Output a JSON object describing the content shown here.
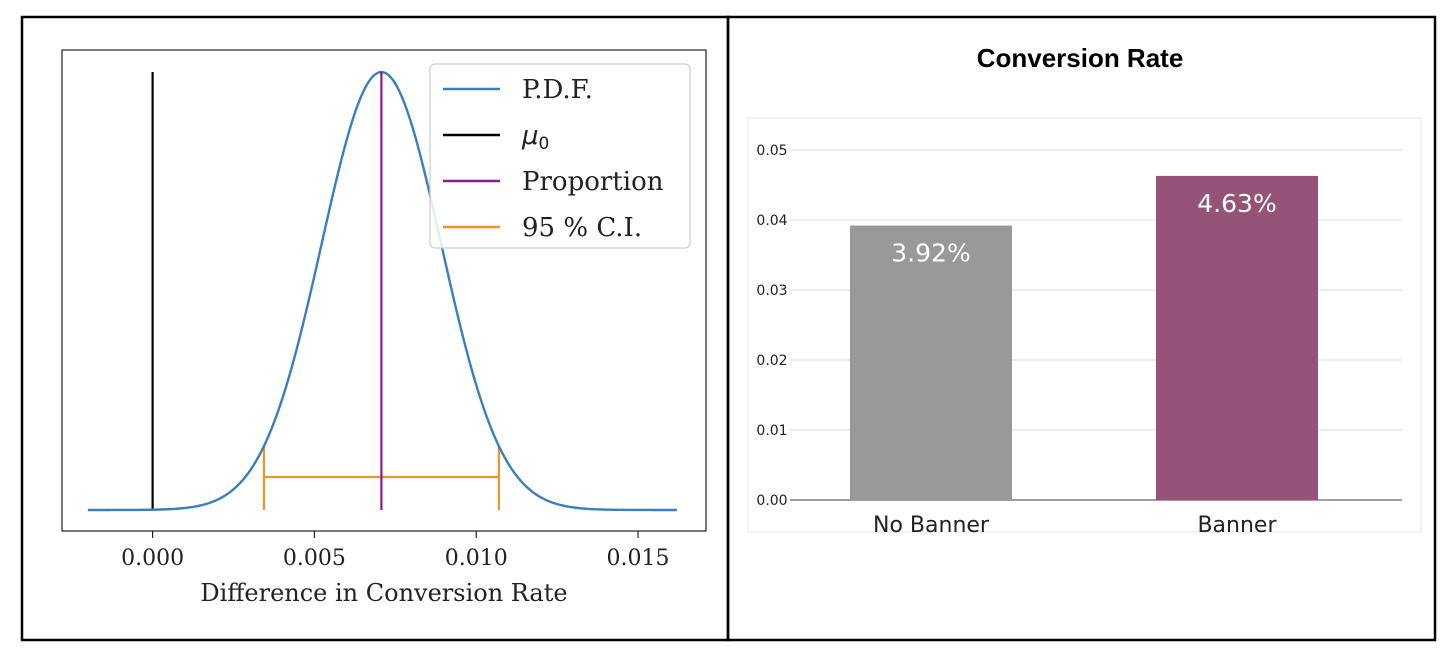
{
  "chart_data": [
    {
      "type": "line",
      "xlabel": "Difference in Conversion Rate",
      "ylabel": "",
      "xlim": [
        -0.0028,
        0.0171
      ],
      "xticks": [
        0.0,
        0.005,
        0.01,
        0.015
      ],
      "xtick_labels": [
        "0.000",
        "0.005",
        "0.010",
        "0.015"
      ],
      "yticks": [],
      "grid": false,
      "legend_position": "top-right",
      "series": [
        {
          "name": "P.D.F.",
          "kind": "normal-pdf",
          "mean": 0.00707,
          "sd": 0.00185,
          "x_range": [
            -0.002,
            0.0162
          ],
          "color": "#3a7fbd"
        },
        {
          "name": "μ0",
          "kind": "vertical-line",
          "x": 0.0,
          "color": "#000000"
        },
        {
          "name": "Proportion",
          "kind": "vertical-line",
          "x": 0.00707,
          "color": "#8b1a8b"
        },
        {
          "name": "95 % C.I.",
          "kind": "interval",
          "low": 0.00344,
          "high": 0.0107,
          "color": "#f39226"
        }
      ],
      "legend": [
        {
          "label": "P.D.F.",
          "color": "#3a7fbd"
        },
        {
          "label": "μ0",
          "color": "#000000",
          "math": true
        },
        {
          "label": "Proportion",
          "color": "#8b1a8b"
        },
        {
          "label": "95 % C.I.",
          "color": "#f39226"
        }
      ]
    },
    {
      "type": "bar",
      "title": "Conversion Rate",
      "categories": [
        "No Banner",
        "Banner"
      ],
      "values": [
        0.0392,
        0.0463
      ],
      "data_labels": [
        "3.92%",
        "4.63%"
      ],
      "colors": [
        "#999999",
        "#955377"
      ],
      "ylim": [
        0,
        0.05
      ],
      "yticks": [
        0.0,
        0.01,
        0.02,
        0.03,
        0.04,
        0.05
      ],
      "ytick_labels": [
        "0.00",
        "0.01",
        "0.02",
        "0.03",
        "0.04",
        "0.05"
      ],
      "grid": true
    }
  ]
}
